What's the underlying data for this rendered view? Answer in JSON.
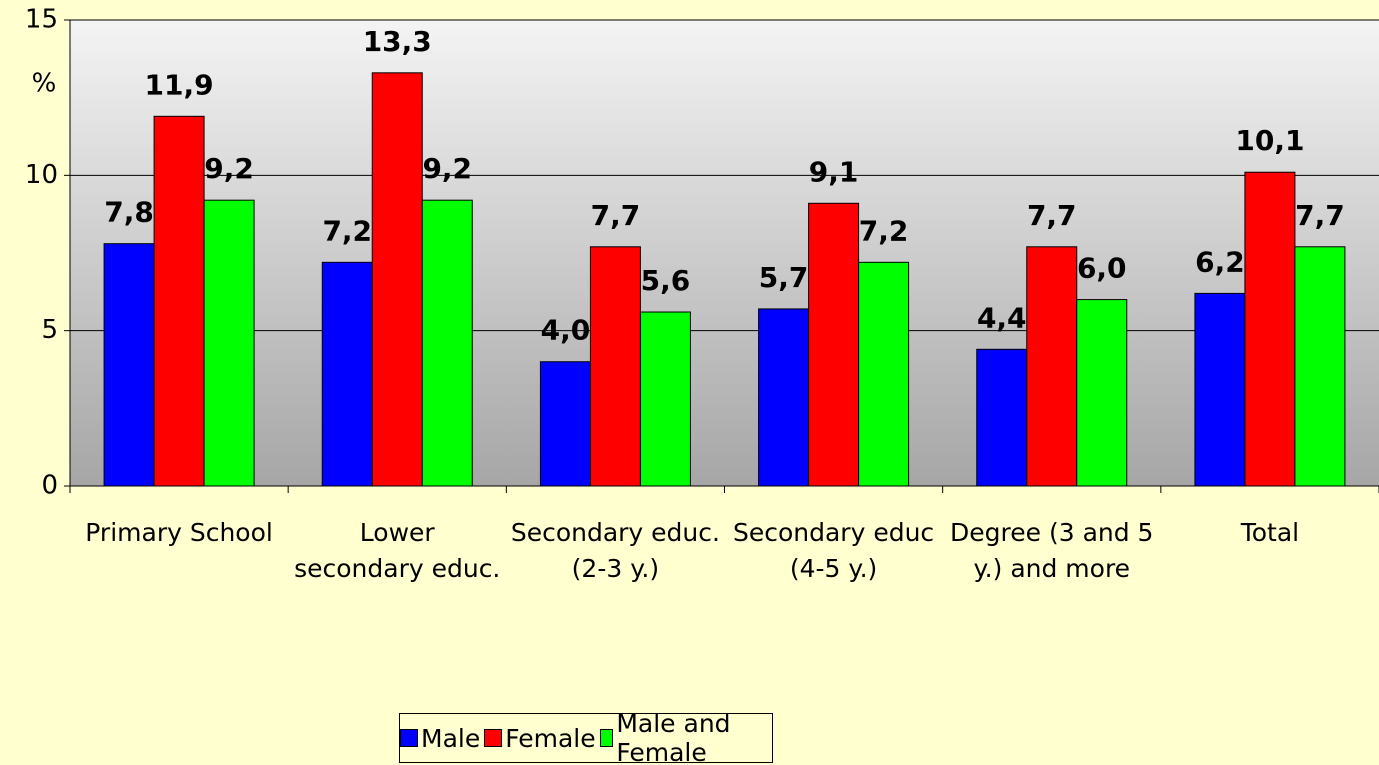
{
  "chart_data": {
    "type": "bar",
    "categories": [
      "Primary School",
      "Lower secondary educ.",
      "Secondary educ. (2-3 y.)",
      "Secondary educ (4-5 y.)",
      "Degree (3 and 5 y.) and more",
      "Total"
    ],
    "series": [
      {
        "name": "Male",
        "color": "#0000ff",
        "values": [
          7.8,
          7.2,
          4.0,
          5.7,
          4.4,
          6.2
        ],
        "value_labels": [
          "7,8",
          "7,2",
          "4,0",
          "5,7",
          "4,4",
          "6,2"
        ]
      },
      {
        "name": "Female",
        "color": "#ff0000",
        "values": [
          11.9,
          13.3,
          7.7,
          9.1,
          7.7,
          10.1
        ],
        "value_labels": [
          "11,9",
          "13,3",
          "7,7",
          "9,1",
          "7,7",
          "10,1"
        ]
      },
      {
        "name": "Male and Female",
        "color": "#00ff00",
        "values": [
          9.2,
          9.2,
          5.6,
          7.2,
          6.0,
          7.7
        ],
        "value_labels": [
          "9,2",
          "9,2",
          "5,6",
          "7,2",
          "6,0",
          "7,7"
        ]
      }
    ],
    "y_label": "%",
    "ylim": [
      0,
      15
    ],
    "yticks": [
      0,
      5,
      10,
      15
    ],
    "grid": true,
    "legend": "bottom"
  }
}
